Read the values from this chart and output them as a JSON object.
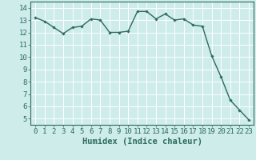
{
  "xlabel": "Humidex (Indice chaleur)",
  "ylabel": "",
  "x_values": [
    0,
    1,
    2,
    3,
    4,
    5,
    6,
    7,
    8,
    9,
    10,
    11,
    12,
    13,
    14,
    15,
    16,
    17,
    18,
    19,
    20,
    21,
    22,
    23
  ],
  "y_values": [
    13.2,
    12.9,
    12.4,
    11.9,
    12.4,
    12.5,
    13.1,
    13.0,
    12.0,
    12.0,
    12.1,
    13.7,
    13.7,
    13.1,
    13.5,
    13.0,
    13.1,
    12.6,
    12.5,
    10.1,
    8.4,
    6.5,
    5.7,
    4.9
  ],
  "line_color": "#2e6b5e",
  "marker": "D",
  "marker_size": 1.8,
  "bg_color": "#cdecea",
  "grid_color": "#ffffff",
  "axis_color": "#2e6b5e",
  "tick_color": "#2e6b5e",
  "ylim": [
    4.5,
    14.5
  ],
  "xlim": [
    -0.5,
    23.5
  ],
  "yticks": [
    5,
    6,
    7,
    8,
    9,
    10,
    11,
    12,
    13,
    14
  ],
  "xticks": [
    0,
    1,
    2,
    3,
    4,
    5,
    6,
    7,
    8,
    9,
    10,
    11,
    12,
    13,
    14,
    15,
    16,
    17,
    18,
    19,
    20,
    21,
    22,
    23
  ],
  "tick_fontsize": 6.5,
  "label_fontsize": 7.5,
  "linewidth": 1.0
}
